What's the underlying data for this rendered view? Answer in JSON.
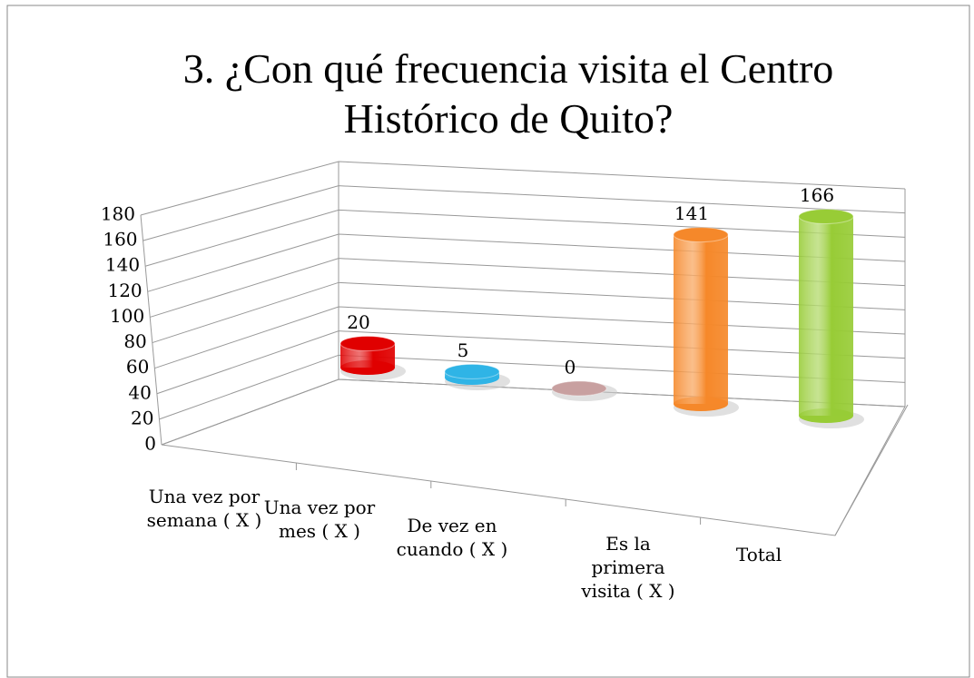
{
  "chart_data": {
    "type": "bar3d",
    "title": "3. ¿Con qué frecuencia visita el Centro Histórico de Quito?",
    "categories": [
      "Una vez por semana ( X )",
      "Una vez por mes ( X )",
      "De vez en cuando ( X )",
      "Es la primera visita ( X )",
      "Total"
    ],
    "values": [
      20,
      5,
      0,
      141,
      166
    ],
    "colors": [
      "#e00000",
      "#2fb4e6",
      "#c8a0a0",
      "#f5882a",
      "#98cc36"
    ],
    "ylim": [
      0,
      180
    ],
    "yticks": [
      0,
      20,
      40,
      60,
      80,
      100,
      120,
      140,
      160,
      180
    ],
    "grid": true
  }
}
